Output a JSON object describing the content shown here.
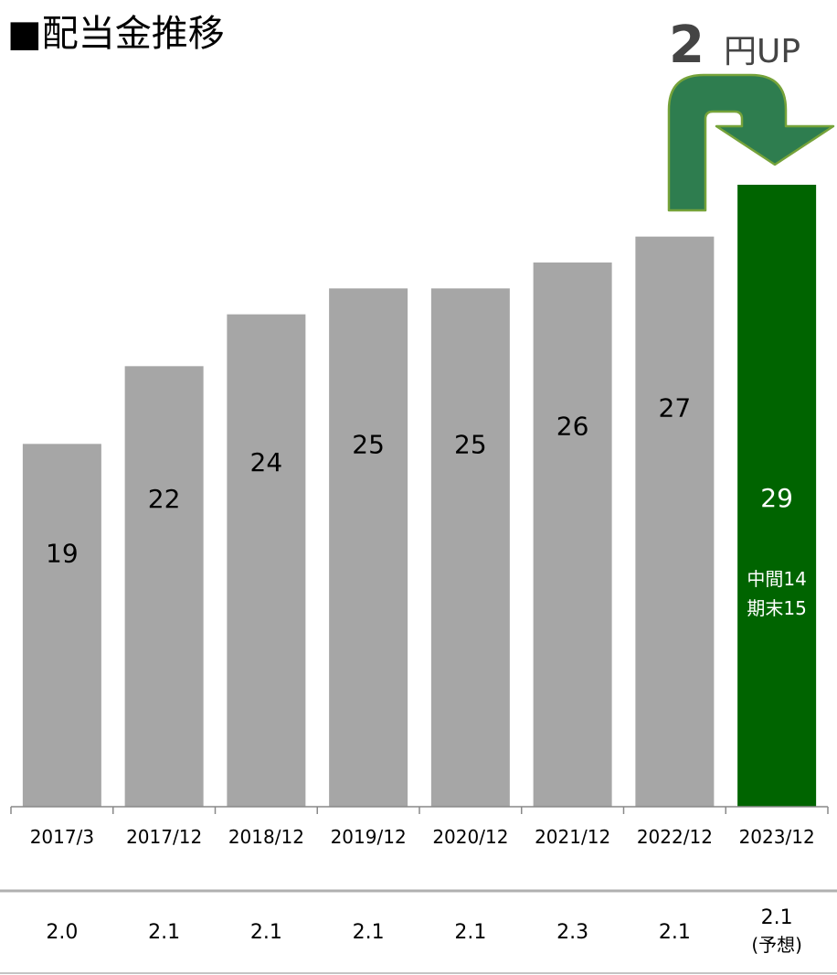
{
  "chart_data": {
    "type": "bar",
    "title": "■配当金推移",
    "categories": [
      "2017/3",
      "2017/12",
      "2018/12",
      "2019/12",
      "2020/12",
      "2021/12",
      "2022/12",
      "2023/12"
    ],
    "values": [
      19,
      22,
      24,
      25,
      25,
      26,
      27,
      29
    ],
    "highlight_index": 7,
    "highlight_sublabels": [
      "中間14",
      "期末15"
    ],
    "ylim": [
      5,
      29
    ],
    "grid": false,
    "ratio_row": {
      "values": [
        "2.0",
        "2.1",
        "2.1",
        "2.1",
        "2.1",
        "2.3",
        "2.1",
        "2.1"
      ],
      "last_note": "(予想)"
    },
    "callout": {
      "number": "2",
      "suffix": "円UP"
    },
    "colors": {
      "bar": "#a6a6a6",
      "highlight_bar": "#006400",
      "arrow_fill": "#2e7d4f",
      "arrow_stroke": "#76a33a",
      "axis": "#888888"
    }
  }
}
